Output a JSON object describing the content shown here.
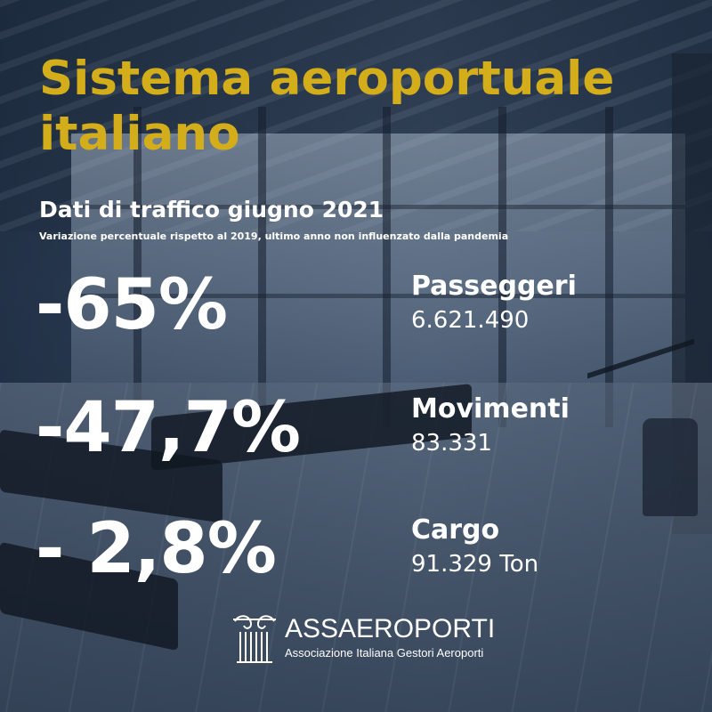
{
  "header": {
    "title_line1": "Sistema aeroportuale",
    "title_line2": "italiano",
    "subtitle": "Dati di traffico giugno 2021",
    "note": "Variazione percentuale rispetto al 2019, ultimo anno non influenzato dalla pandemia"
  },
  "stats": [
    {
      "percent": "-65%",
      "label": "Passeggeri",
      "value": "6.621.490"
    },
    {
      "percent": "-47,7%",
      "label": "Movimenti",
      "value": "83.331"
    },
    {
      "percent": "- 2,8%",
      "label": "Cargo",
      "value": "91.329 Ton"
    }
  ],
  "logo": {
    "name": "ASSAEROPORTI",
    "tagline": "Associazione Italiana Gestori Aeroporti",
    "icon": "column-capital-icon"
  },
  "colors": {
    "title": "#d4ad1a",
    "text": "#ffffff",
    "overlay": "#1e2d40"
  }
}
